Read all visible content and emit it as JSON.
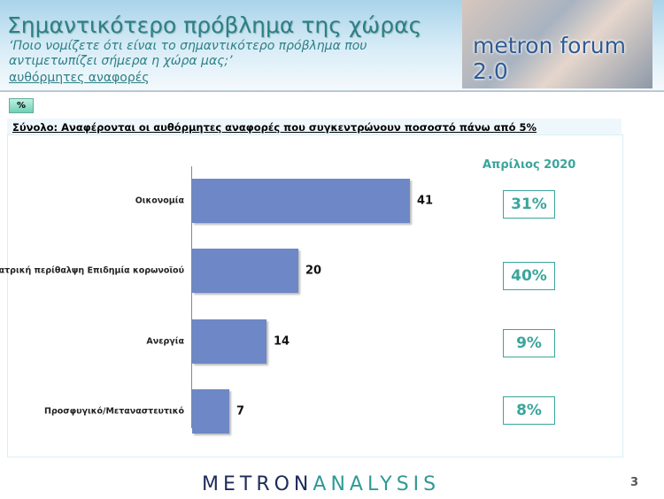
{
  "header": {
    "title": "Σημαντικότερο πρόβλημα της χώρας",
    "question_line1": "‘Ποιο νομίζετε ότι  είναι το σημαντικότερο πρόβλημα που",
    "question_line2": "αντιμετωπίζει σήμερα η χώρα μας;’",
    "subtitle": "αυθόρμητες αναφορές",
    "logo": "metron forum 2.0"
  },
  "unit_badge": "%",
  "note": "Σύνολο: Αναφέρονται οι αυθόρμητες αναφορές που συγκεντρώνουν ποσοστό πάνω από 5%",
  "chart_data": {
    "type": "bar",
    "orientation": "horizontal",
    "categories": [
      "Οικονομία",
      "Ιατρική περίθαλψη Επιδημία κορωνοϊού",
      "Ανεργία",
      "Προσφυγικό/Μεταναστευτικό"
    ],
    "values": [
      41,
      20,
      14,
      7
    ],
    "xlim": [
      0,
      45
    ],
    "comparison": {
      "label": "Απρίλιος 2020",
      "values": [
        "31%",
        "40%",
        "9%",
        "8%"
      ]
    },
    "colors": {
      "bar": "#6e87c6",
      "accent": "#3aa59b"
    }
  },
  "footer": {
    "brand_a": "METRON",
    "brand_b": "ANALYSIS",
    "page": "3"
  }
}
